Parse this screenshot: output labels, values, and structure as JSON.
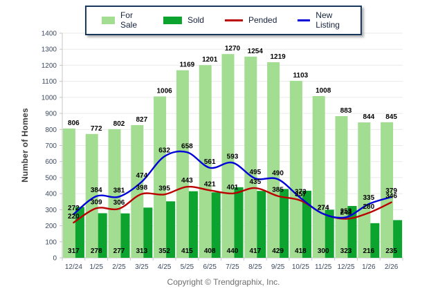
{
  "footer": {
    "copyright": "Copyright © Trendgraphix, Inc."
  },
  "colors": {
    "for_sale": "#a2dd92",
    "sold": "#0ca32e",
    "pended": "#bb0000",
    "new_listing": "#0000d9",
    "grid": "#eaeaea",
    "axis": "#c6c6c6",
    "tick_text": "#3c4a60",
    "data_label": "#000000"
  },
  "chart_data": {
    "type": "bar",
    "title": "",
    "xlabel": "",
    "ylabel": "Number of Homes",
    "ylim": [
      0,
      1400
    ],
    "y_ticks": [
      0,
      100,
      200,
      300,
      400,
      500,
      600,
      700,
      800,
      900,
      1000,
      1100,
      1200,
      1300,
      1400
    ],
    "grid": true,
    "legend_position": "top",
    "categories": [
      "12/24",
      "1/25",
      "2/25",
      "3/25",
      "4/25",
      "5/25",
      "6/25",
      "7/25",
      "8/25",
      "9/25",
      "10/25",
      "11/25",
      "12/25",
      "1/26",
      "2/26"
    ],
    "series": [
      {
        "name": "For Sale",
        "render": "bar",
        "color": "#a2dd92",
        "values": [
          806,
          772,
          802,
          827,
          1006,
          1169,
          1201,
          1270,
          1254,
          1219,
          1103,
          1008,
          883,
          844,
          845
        ]
      },
      {
        "name": "Sold",
        "render": "bar",
        "color": "#0ca32e",
        "values": [
          317,
          278,
          277,
          313,
          352,
          415,
          408,
          440,
          417,
          429,
          418,
          300,
          323,
          216,
          235
        ]
      },
      {
        "name": "Pended",
        "render": "line",
        "color": "#bb0000",
        "values": [
          220,
          309,
          306,
          398,
          395,
          443,
          421,
          401,
          435,
          385,
          357,
          274,
          243,
          280,
          346
        ]
      },
      {
        "name": "New Listing",
        "render": "line",
        "color": "#0000d9",
        "values": [
          272,
          384,
          381,
          474,
          632,
          658,
          561,
          593,
          495,
          490,
          373,
          274,
          253,
          335,
          379
        ]
      }
    ]
  }
}
